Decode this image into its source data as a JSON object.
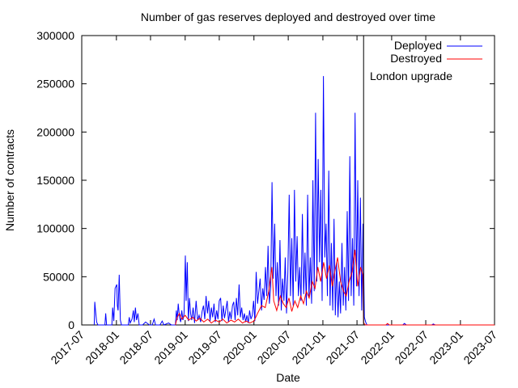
{
  "chart_data": {
    "type": "line",
    "title": "Number of gas reserves deployed and destroyed over time",
    "xlabel": "Date",
    "ylabel": "Number of contracts",
    "xlim": [
      "2017-07",
      "2023-07"
    ],
    "ylim": [
      0,
      300000
    ],
    "grid": false,
    "legend_position": "top-right",
    "x_ticks": [
      "2017-07",
      "2018-01",
      "2018-07",
      "2019-01",
      "2019-07",
      "2020-01",
      "2020-07",
      "2021-01",
      "2021-07",
      "2022-01",
      "2022-07",
      "2023-01",
      "2023-07"
    ],
    "y_ticks": [
      0,
      50000,
      100000,
      150000,
      200000,
      250000,
      300000
    ],
    "y_tick_labels": [
      "0",
      "50000",
      "100000",
      "150000",
      "200000",
      "250000",
      "300000"
    ],
    "annotations": [
      {
        "text": "London upgrade",
        "x": "2021-08-05"
      }
    ],
    "series": [
      {
        "name": "Deployed",
        "color": "#0000ff",
        "points": [
          [
            "2017-09-05",
            0
          ],
          [
            "2017-09-08",
            24000
          ],
          [
            "2017-09-12",
            15000
          ],
          [
            "2017-09-18",
            3000
          ],
          [
            "2017-09-25",
            0
          ],
          [
            "2017-11-01",
            0
          ],
          [
            "2017-11-05",
            12000
          ],
          [
            "2017-11-10",
            0
          ],
          [
            "2017-12-08",
            0
          ],
          [
            "2017-12-12",
            18000
          ],
          [
            "2017-12-18",
            4000
          ],
          [
            "2017-12-25",
            38000
          ],
          [
            "2018-01-03",
            42000
          ],
          [
            "2018-01-06",
            20000
          ],
          [
            "2018-01-10",
            15000
          ],
          [
            "2018-01-16",
            52000
          ],
          [
            "2018-01-22",
            5000
          ],
          [
            "2018-01-28",
            0
          ],
          [
            "2018-03-05",
            0
          ],
          [
            "2018-03-10",
            8000
          ],
          [
            "2018-03-15",
            2000
          ],
          [
            "2018-03-25",
            6000
          ],
          [
            "2018-04-01",
            15000
          ],
          [
            "2018-04-06",
            3000
          ],
          [
            "2018-04-12",
            18000
          ],
          [
            "2018-04-18",
            5000
          ],
          [
            "2018-04-25",
            12000
          ],
          [
            "2018-05-02",
            0
          ],
          [
            "2018-05-20",
            0
          ],
          [
            "2018-06-05",
            3000
          ],
          [
            "2018-06-25",
            0
          ],
          [
            "2018-07-10",
            0
          ],
          [
            "2018-07-20",
            6000
          ],
          [
            "2018-07-28",
            0
          ],
          [
            "2018-08-20",
            0
          ],
          [
            "2018-09-01",
            4000
          ],
          [
            "2018-09-10",
            0
          ],
          [
            "2018-10-05",
            2000
          ],
          [
            "2018-10-20",
            0
          ],
          [
            "2018-11-10",
            0
          ],
          [
            "2018-11-15",
            15000
          ],
          [
            "2018-11-20",
            5000
          ],
          [
            "2018-11-25",
            22000
          ],
          [
            "2018-12-02",
            8000
          ],
          [
            "2018-12-08",
            3000
          ],
          [
            "2018-12-14",
            15000
          ],
          [
            "2018-12-20",
            5000
          ],
          [
            "2018-12-26",
            12000
          ],
          [
            "2019-01-02",
            72000
          ],
          [
            "2019-01-06",
            25000
          ],
          [
            "2019-01-12",
            65000
          ],
          [
            "2019-01-18",
            4000
          ],
          [
            "2019-01-24",
            28000
          ],
          [
            "2019-01-30",
            12000
          ],
          [
            "2019-02-05",
            5000
          ],
          [
            "2019-02-12",
            18000
          ],
          [
            "2019-02-20",
            2000
          ],
          [
            "2019-02-28",
            25000
          ],
          [
            "2019-03-08",
            5000
          ],
          [
            "2019-03-16",
            10000
          ],
          [
            "2019-03-24",
            3000
          ],
          [
            "2019-04-01",
            14000
          ],
          [
            "2019-04-08",
            20000
          ],
          [
            "2019-04-15",
            6000
          ],
          [
            "2019-04-22",
            30000
          ],
          [
            "2019-04-29",
            12000
          ],
          [
            "2019-05-06",
            25000
          ],
          [
            "2019-05-13",
            4000
          ],
          [
            "2019-05-20",
            18000
          ],
          [
            "2019-05-27",
            8000
          ],
          [
            "2019-06-03",
            22000
          ],
          [
            "2019-06-10",
            3000
          ],
          [
            "2019-06-17",
            15000
          ],
          [
            "2019-06-24",
            6000
          ],
          [
            "2019-07-01",
            25000
          ],
          [
            "2019-07-08",
            28000
          ],
          [
            "2019-07-15",
            4000
          ],
          [
            "2019-07-22",
            20000
          ],
          [
            "2019-07-29",
            7000
          ],
          [
            "2019-08-05",
            16000
          ],
          [
            "2019-08-12",
            25000
          ],
          [
            "2019-08-19",
            3000
          ],
          [
            "2019-08-26",
            14000
          ],
          [
            "2019-09-02",
            6000
          ],
          [
            "2019-09-09",
            20000
          ],
          [
            "2019-09-16",
            24000
          ],
          [
            "2019-09-23",
            5000
          ],
          [
            "2019-09-30",
            28000
          ],
          [
            "2019-10-07",
            10000
          ],
          [
            "2019-10-14",
            42000
          ],
          [
            "2019-10-21",
            8000
          ],
          [
            "2019-10-28",
            18000
          ],
          [
            "2019-11-04",
            5000
          ],
          [
            "2019-11-11",
            12000
          ],
          [
            "2019-11-18",
            3000
          ],
          [
            "2019-11-25",
            10000
          ],
          [
            "2019-12-02",
            2000
          ],
          [
            "2019-12-09",
            15000
          ],
          [
            "2019-12-16",
            6000
          ],
          [
            "2019-12-23",
            10000
          ],
          [
            "2019-12-30",
            25000
          ],
          [
            "2020-01-06",
            4000
          ],
          [
            "2020-01-13",
            55000
          ],
          [
            "2020-01-20",
            22000
          ],
          [
            "2020-01-27",
            35000
          ],
          [
            "2020-02-03",
            48000
          ],
          [
            "2020-02-10",
            15000
          ],
          [
            "2020-02-17",
            38000
          ],
          [
            "2020-02-24",
            26000
          ],
          [
            "2020-03-02",
            60000
          ],
          [
            "2020-03-09",
            30000
          ],
          [
            "2020-03-16",
            82000
          ],
          [
            "2020-03-23",
            22000
          ],
          [
            "2020-03-30",
            40000
          ],
          [
            "2020-04-06",
            148000
          ],
          [
            "2020-04-13",
            48000
          ],
          [
            "2020-04-20",
            105000
          ],
          [
            "2020-04-27",
            30000
          ],
          [
            "2020-05-04",
            65000
          ],
          [
            "2020-05-11",
            20000
          ],
          [
            "2020-05-18",
            88000
          ],
          [
            "2020-05-25",
            15000
          ],
          [
            "2020-06-01",
            48000
          ],
          [
            "2020-06-08",
            25000
          ],
          [
            "2020-06-15",
            70000
          ],
          [
            "2020-06-22",
            12000
          ],
          [
            "2020-06-29",
            55000
          ],
          [
            "2020-07-06",
            135000
          ],
          [
            "2020-07-13",
            30000
          ],
          [
            "2020-07-20",
            90000
          ],
          [
            "2020-07-27",
            20000
          ],
          [
            "2020-08-03",
            140000
          ],
          [
            "2020-08-10",
            45000
          ],
          [
            "2020-08-17",
            92000
          ],
          [
            "2020-08-24",
            30000
          ],
          [
            "2020-08-31",
            60000
          ],
          [
            "2020-09-07",
            25000
          ],
          [
            "2020-09-14",
            115000
          ],
          [
            "2020-09-21",
            32000
          ],
          [
            "2020-09-28",
            75000
          ],
          [
            "2020-10-05",
            20000
          ],
          [
            "2020-10-12",
            135000
          ],
          [
            "2020-10-19",
            28000
          ],
          [
            "2020-10-26",
            70000
          ],
          [
            "2020-11-02",
            22000
          ],
          [
            "2020-11-09",
            150000
          ],
          [
            "2020-11-16",
            35000
          ],
          [
            "2020-11-23",
            220000
          ],
          [
            "2020-11-30",
            45000
          ],
          [
            "2020-12-07",
            172000
          ],
          [
            "2020-12-14",
            65000
          ],
          [
            "2020-12-21",
            140000
          ],
          [
            "2020-12-28",
            25000
          ],
          [
            "2021-01-04",
            258000
          ],
          [
            "2021-01-11",
            70000
          ],
          [
            "2021-01-18",
            105000
          ],
          [
            "2021-01-25",
            30000
          ],
          [
            "2021-02-01",
            160000
          ],
          [
            "2021-02-08",
            20000
          ],
          [
            "2021-02-15",
            85000
          ],
          [
            "2021-02-22",
            15000
          ],
          [
            "2021-03-01",
            110000
          ],
          [
            "2021-03-08",
            10000
          ],
          [
            "2021-03-15",
            65000
          ],
          [
            "2021-03-22",
            8000
          ],
          [
            "2021-03-29",
            45000
          ],
          [
            "2021-04-05",
            12000
          ],
          [
            "2021-04-12",
            85000
          ],
          [
            "2021-04-19",
            20000
          ],
          [
            "2021-04-26",
            60000
          ],
          [
            "2021-05-03",
            15000
          ],
          [
            "2021-05-10",
            118000
          ],
          [
            "2021-05-17",
            25000
          ],
          [
            "2021-05-24",
            175000
          ],
          [
            "2021-05-31",
            30000
          ],
          [
            "2021-06-07",
            90000
          ],
          [
            "2021-06-14",
            20000
          ],
          [
            "2021-06-21",
            220000
          ],
          [
            "2021-06-28",
            40000
          ],
          [
            "2021-07-05",
            150000
          ],
          [
            "2021-07-12",
            30000
          ],
          [
            "2021-07-19",
            132000
          ],
          [
            "2021-07-26",
            15000
          ],
          [
            "2021-08-02",
            105000
          ],
          [
            "2021-08-09",
            8000
          ],
          [
            "2021-08-16",
            3000
          ],
          [
            "2021-08-23",
            0
          ],
          [
            "2022-03-01",
            0
          ],
          [
            "2022-03-10",
            1500
          ],
          [
            "2022-03-20",
            0
          ],
          [
            "2022-08-01",
            0
          ],
          [
            "2022-08-10",
            1000
          ],
          [
            "2022-08-20",
            0
          ],
          [
            "2023-07-01",
            0
          ]
        ]
      },
      {
        "name": "Destroyed",
        "color": "#ff0000",
        "points": [
          [
            "2018-11-10",
            0
          ],
          [
            "2018-11-20",
            8000
          ],
          [
            "2018-12-01",
            12000
          ],
          [
            "2018-12-15",
            6000
          ],
          [
            "2019-01-01",
            10000
          ],
          [
            "2019-01-20",
            5000
          ],
          [
            "2019-02-10",
            8000
          ],
          [
            "2019-03-01",
            4000
          ],
          [
            "2019-03-20",
            7000
          ],
          [
            "2019-04-10",
            3000
          ],
          [
            "2019-05-01",
            6000
          ],
          [
            "2019-05-20",
            2000
          ],
          [
            "2019-06-10",
            5000
          ],
          [
            "2019-07-01",
            3000
          ],
          [
            "2019-07-20",
            6000
          ],
          [
            "2019-08-10",
            2000
          ],
          [
            "2019-09-01",
            5000
          ],
          [
            "2019-09-20",
            3000
          ],
          [
            "2019-10-10",
            6000
          ],
          [
            "2019-11-01",
            2000
          ],
          [
            "2019-11-20",
            4000
          ],
          [
            "2019-12-10",
            2000
          ],
          [
            "2020-01-01",
            4000
          ],
          [
            "2020-01-20",
            12000
          ],
          [
            "2020-02-10",
            20000
          ],
          [
            "2020-03-01",
            18000
          ],
          [
            "2020-03-20",
            35000
          ],
          [
            "2020-04-05",
            60000
          ],
          [
            "2020-04-15",
            25000
          ],
          [
            "2020-05-01",
            15000
          ],
          [
            "2020-05-20",
            30000
          ],
          [
            "2020-06-05",
            22000
          ],
          [
            "2020-06-20",
            18000
          ],
          [
            "2020-07-05",
            28000
          ],
          [
            "2020-07-20",
            14000
          ],
          [
            "2020-08-05",
            25000
          ],
          [
            "2020-08-20",
            18000
          ],
          [
            "2020-09-05",
            30000
          ],
          [
            "2020-09-20",
            22000
          ],
          [
            "2020-10-05",
            35000
          ],
          [
            "2020-10-20",
            28000
          ],
          [
            "2020-11-05",
            45000
          ],
          [
            "2020-11-20",
            38000
          ],
          [
            "2020-12-05",
            60000
          ],
          [
            "2020-12-20",
            45000
          ],
          [
            "2021-01-05",
            65000
          ],
          [
            "2021-01-20",
            48000
          ],
          [
            "2021-02-05",
            62000
          ],
          [
            "2021-02-20",
            40000
          ],
          [
            "2021-03-05",
            55000
          ],
          [
            "2021-03-20",
            70000
          ],
          [
            "2021-04-05",
            45000
          ],
          [
            "2021-04-20",
            35000
          ],
          [
            "2021-05-05",
            30000
          ],
          [
            "2021-05-20",
            45000
          ],
          [
            "2021-06-05",
            55000
          ],
          [
            "2021-06-20",
            78000
          ],
          [
            "2021-07-05",
            40000
          ],
          [
            "2021-07-20",
            60000
          ],
          [
            "2021-08-02",
            52000
          ],
          [
            "2021-08-05",
            2000
          ],
          [
            "2021-08-15",
            0
          ],
          [
            "2021-12-01",
            0
          ],
          [
            "2021-12-10",
            1500
          ],
          [
            "2021-12-20",
            0
          ],
          [
            "2023-07-01",
            0
          ]
        ]
      }
    ]
  }
}
